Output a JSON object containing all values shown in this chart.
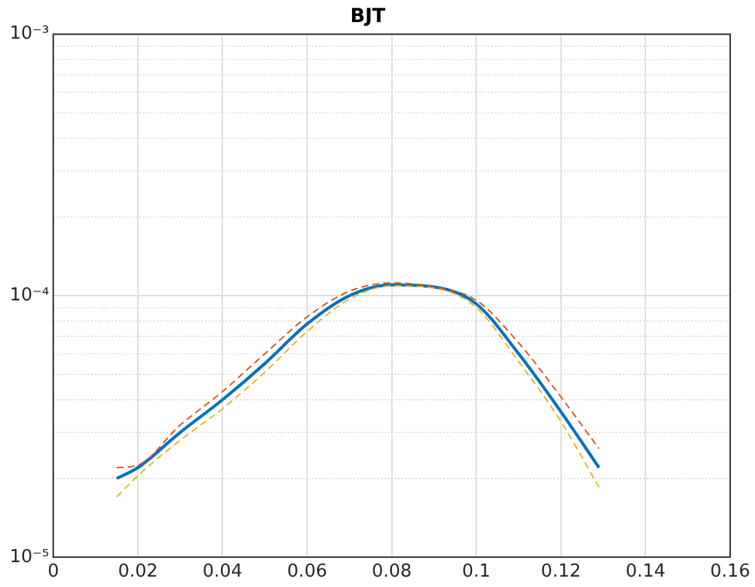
{
  "chart_data": {
    "type": "line",
    "title": "BJT",
    "x": [
      0.015,
      0.02,
      0.03,
      0.04,
      0.05,
      0.06,
      0.07,
      0.08,
      0.09,
      0.1,
      0.11,
      0.12,
      0.129
    ],
    "series": [
      {
        "color": "#d95319",
        "line_style": "dashed",
        "values": [
          2.2e-05,
          2.25e-05,
          3.2e-05,
          4.3e-05,
          6e-05,
          8.3e-05,
          0.000104,
          0.000112,
          0.000108,
          9.6e-05,
          6.6e-05,
          4.1e-05,
          2.6e-05
        ]
      },
      {
        "color": "#edb120",
        "line_style": "dashed",
        "values": [
          1.7e-05,
          2.05e-05,
          2.8e-05,
          3.7e-05,
          5.1e-05,
          7.3e-05,
          9.7e-05,
          0.000109,
          0.000107,
          9e-05,
          5.6e-05,
          3.3e-05,
          1.85e-05
        ]
      },
      {
        "color": "#0072bd",
        "line_style": "solid",
        "values": [
          2e-05,
          2.2e-05,
          3e-05,
          4e-05,
          5.5e-05,
          7.8e-05,
          0.0001,
          0.00011,
          0.000108,
          9.3e-05,
          6e-05,
          3.6e-05,
          2.2e-05
        ]
      }
    ],
    "xlim": [
      0,
      0.16
    ],
    "xticks": [
      0,
      0.02,
      0.04,
      0.06,
      0.08,
      0.1,
      0.12,
      0.14,
      0.16
    ],
    "ylim": [
      1e-05,
      0.001
    ],
    "yticks": [
      {
        "value": 1e-05,
        "label": "10⁻⁵"
      },
      {
        "value": 0.0001,
        "label": "10⁻⁴"
      },
      {
        "value": 0.001,
        "label": "10⁻³"
      }
    ],
    "log": "y",
    "grid": true,
    "legend": false,
    "marker": "none"
  }
}
